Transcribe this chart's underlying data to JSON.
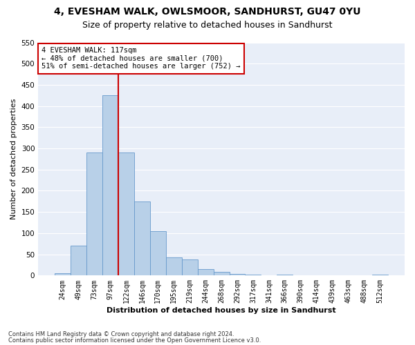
{
  "title1": "4, EVESHAM WALK, OWLSMOOR, SANDHURST, GU47 0YU",
  "title2": "Size of property relative to detached houses in Sandhurst",
  "xlabel": "Distribution of detached houses by size in Sandhurst",
  "ylabel": "Number of detached properties",
  "categories": [
    "24sqm",
    "49sqm",
    "73sqm",
    "97sqm",
    "122sqm",
    "146sqm",
    "170sqm",
    "195sqm",
    "219sqm",
    "244sqm",
    "268sqm",
    "292sqm",
    "317sqm",
    "341sqm",
    "366sqm",
    "390sqm",
    "414sqm",
    "439sqm",
    "463sqm",
    "488sqm",
    "512sqm"
  ],
  "values": [
    5,
    70,
    290,
    425,
    290,
    175,
    105,
    43,
    38,
    15,
    8,
    3,
    2,
    0,
    2,
    0,
    0,
    0,
    0,
    0,
    2
  ],
  "bar_color": "#b8d0e8",
  "bar_edge_color": "#6699cc",
  "vline_x": 3.5,
  "vline_color": "#cc0000",
  "annotation_text": "4 EVESHAM WALK: 117sqm\n← 48% of detached houses are smaller (700)\n51% of semi-detached houses are larger (752) →",
  "annotation_box_color": "#ffffff",
  "annotation_box_edge_color": "#cc0000",
  "ylim": [
    0,
    550
  ],
  "yticks": [
    0,
    50,
    100,
    150,
    200,
    250,
    300,
    350,
    400,
    450,
    500,
    550
  ],
  "footer1": "Contains HM Land Registry data © Crown copyright and database right 2024.",
  "footer2": "Contains public sector information licensed under the Open Government Licence v3.0.",
  "bg_color": "#e8eef8",
  "title1_fontsize": 10,
  "title2_fontsize": 9,
  "xlabel_fontsize": 8,
  "ylabel_fontsize": 8
}
